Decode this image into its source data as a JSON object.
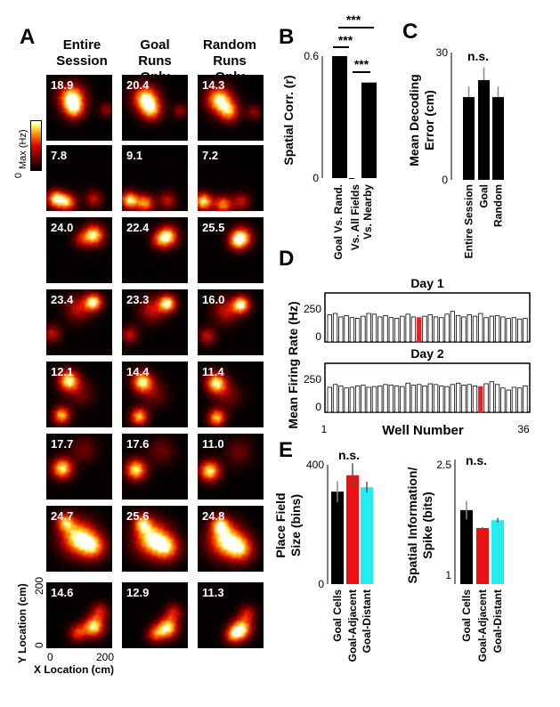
{
  "panelA": {
    "letter": "A",
    "columns": [
      "Entire Session",
      "Goal Runs Only",
      "Random Runs Only"
    ],
    "column_lines": [
      [
        "Entire",
        "Session"
      ],
      [
        "Goal",
        "Runs",
        "Only"
      ],
      [
        "Random",
        "Runs",
        "Only"
      ]
    ],
    "colorbar": {
      "label": "Max (Hz)",
      "min_label": "0"
    },
    "rows": [
      {
        "rates": [
          "18.9",
          "20.4",
          "14.3"
        ]
      },
      {
        "rates": [
          "7.8",
          "9.1",
          "7.2"
        ]
      },
      {
        "rates": [
          "24.0",
          "22.4",
          "25.5"
        ]
      },
      {
        "rates": [
          "23.4",
          "23.3",
          "16.0"
        ]
      },
      {
        "rates": [
          "12.1",
          "14.4",
          "11.4"
        ]
      },
      {
        "rates": [
          "17.7",
          "17.6",
          "11.0"
        ]
      },
      {
        "rates": [
          "24.7",
          "25.6",
          "24.8"
        ]
      },
      {
        "rates": [
          "14.6",
          "12.9",
          "11.3"
        ]
      }
    ],
    "y_axis": {
      "label": "Y Location (cm)",
      "ticks": [
        "0",
        "200"
      ]
    },
    "x_axis": {
      "label": "X Location (cm)",
      "ticks": [
        "0",
        "200"
      ]
    }
  },
  "chart_data": [
    {
      "panel": "B",
      "type": "bar",
      "categories": [
        "Goal Vs. Rand.",
        "Vs. All Fields",
        "Vs. Nearby"
      ],
      "values": [
        0.6,
        0.0,
        0.47
      ],
      "errors": [
        0.005,
        0.002,
        0.008
      ],
      "ylabel": "Spatial Corr. (r)",
      "ylim": [
        0,
        0.6
      ],
      "yticks": [
        "0",
        "0.6"
      ],
      "significance": [
        "***",
        "***",
        "***"
      ],
      "colors": [
        "#000000",
        "#000000",
        "#000000"
      ]
    },
    {
      "panel": "C",
      "type": "bar",
      "categories": [
        "Entire Session",
        "Goal",
        "Random"
      ],
      "values": [
        19.5,
        23.5,
        19.5
      ],
      "errors": [
        2.5,
        3.0,
        2.5
      ],
      "ylabel": "Mean Decoding Error (cm)",
      "ylim": [
        0,
        30
      ],
      "yticks": [
        "0",
        "30"
      ],
      "annotation": "n.s.",
      "colors": [
        "#000000",
        "#000000",
        "#000000"
      ]
    },
    {
      "panel": "D",
      "type": "bar",
      "ylabel": "Mean Firing Rate (Hz)",
      "xlabel": "Well Number",
      "xticks": [
        "1",
        "36"
      ],
      "ylim": [
        0,
        250
      ],
      "yticks": [
        "0",
        "250"
      ],
      "days": [
        {
          "title": "Day 1",
          "highlight_well": 17,
          "values": [
            195,
            205,
            180,
            190,
            175,
            170,
            185,
            205,
            200,
            180,
            190,
            175,
            170,
            185,
            200,
            180,
            175,
            185,
            195,
            180,
            175,
            200,
            220,
            190,
            180,
            195,
            185,
            205,
            175,
            185,
            190,
            180,
            170,
            175,
            165,
            170
          ]
        },
        {
          "title": "Day 2",
          "highlight_well": 28,
          "values": [
            180,
            200,
            190,
            175,
            180,
            190,
            195,
            180,
            185,
            190,
            200,
            195,
            190,
            185,
            210,
            195,
            200,
            190,
            205,
            200,
            190,
            185,
            200,
            210,
            195,
            200,
            190,
            185,
            205,
            220,
            200,
            175,
            160,
            180,
            175,
            190
          ]
        }
      ],
      "highlight_color": "#e82020",
      "bar_color": "#404040"
    },
    {
      "panel": "E",
      "type": "bar",
      "categories": [
        "Goal Cells",
        "Goal-Adjacent",
        "Goal-Distant"
      ],
      "values": [
        310,
        365,
        325
      ],
      "errors": [
        35,
        40,
        18
      ],
      "ylabel": "Place Field Size (bins)",
      "ylim": [
        0,
        400
      ],
      "yticks": [
        "0",
        "400"
      ],
      "annotation": "n.s.",
      "colors": [
        "#000000",
        "#ee1111",
        "#22eef2"
      ]
    },
    {
      "panel": "E",
      "type": "bar",
      "categories": [
        "Goal Cells",
        "Goal-Adjacent",
        "Goal-Distant"
      ],
      "values": [
        1.85,
        1.62,
        1.72
      ],
      "errors": [
        0.12,
        0.01,
        0.03
      ],
      "ylabel": "Spatial Information/ Spike (bits)",
      "ylim": [
        0.9,
        2.5
      ],
      "yticks": [
        "1",
        "2.5"
      ],
      "annotation": "n.s.",
      "colors": [
        "#000000",
        "#ee1111",
        "#22eef2"
      ]
    }
  ],
  "labels": {
    "B": "B",
    "C": "C",
    "D": "D",
    "E": "E"
  }
}
